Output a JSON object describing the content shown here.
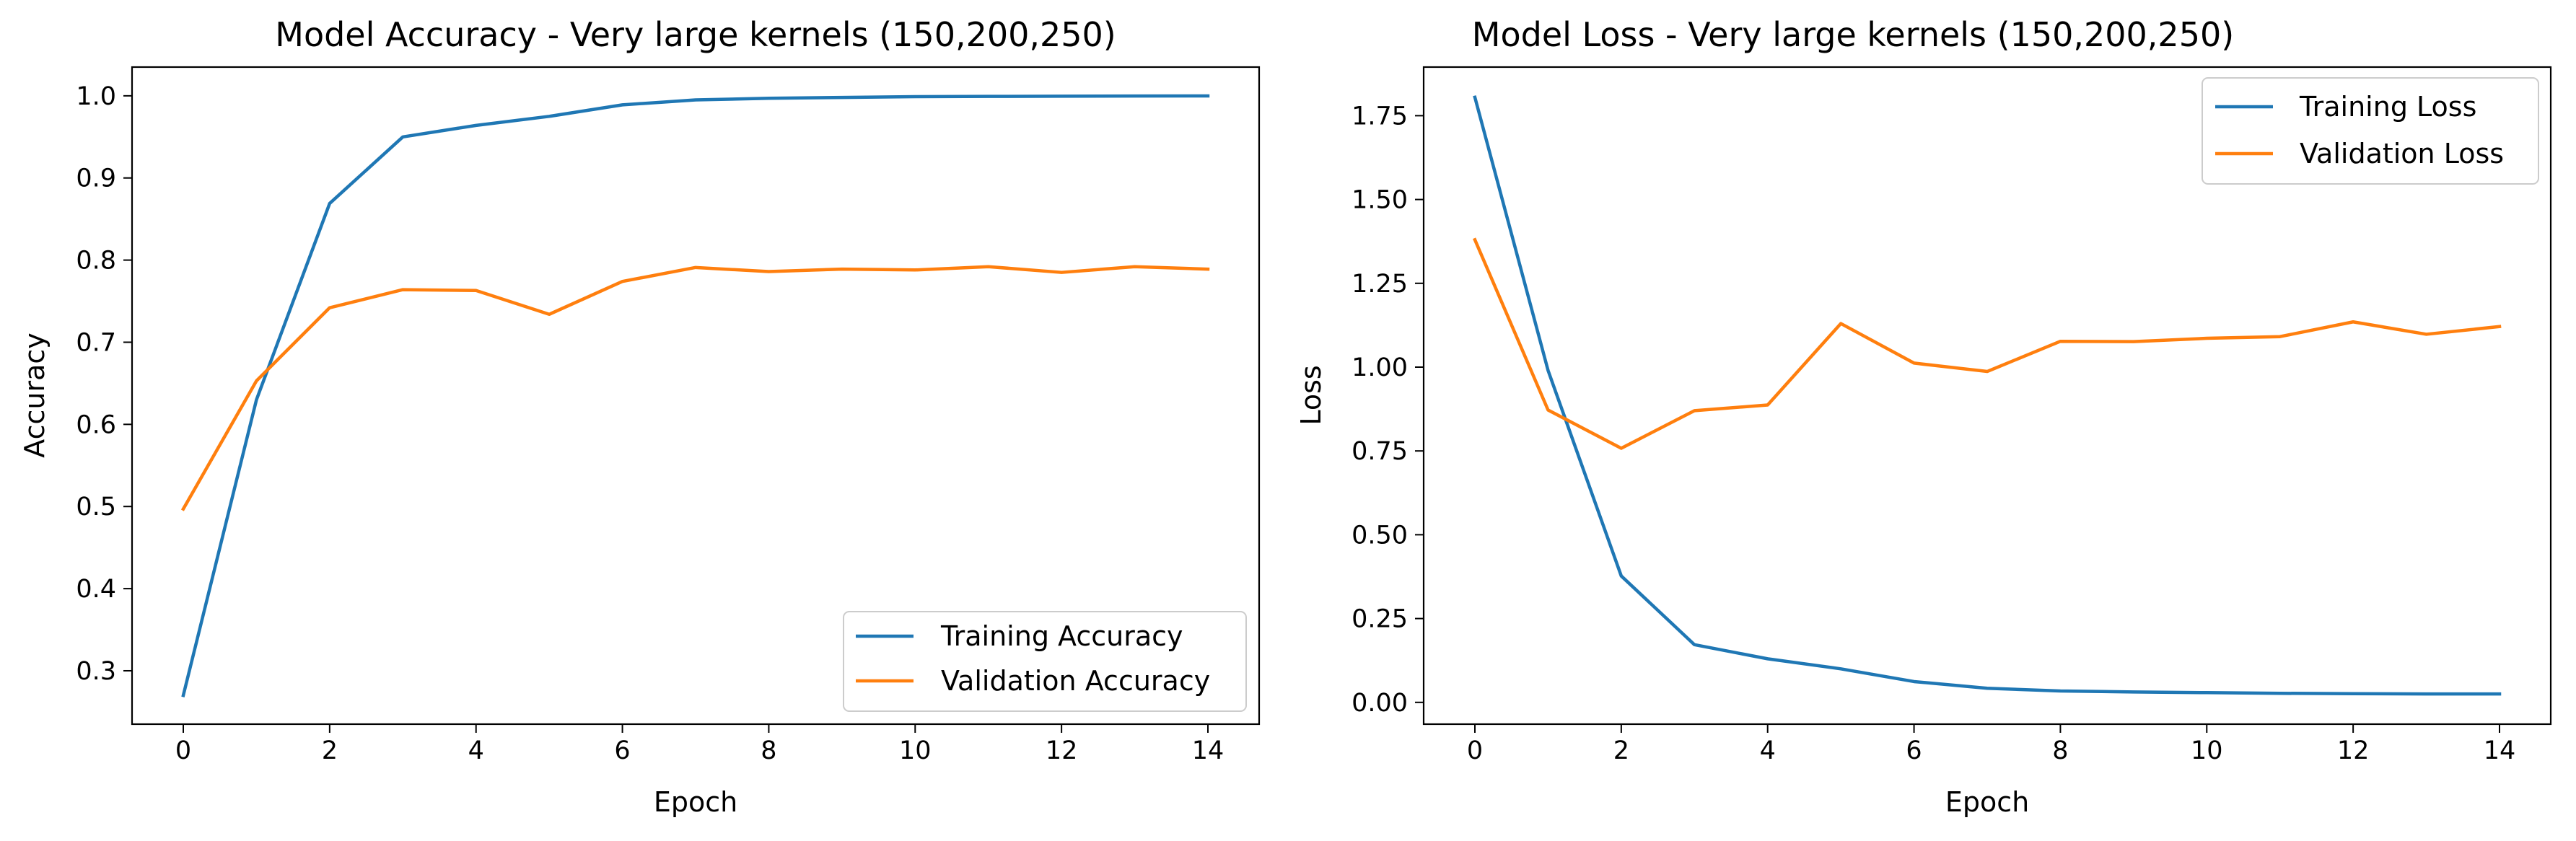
{
  "figure": {
    "background": "#ffffff"
  },
  "chart_data": [
    {
      "type": "line",
      "title": "Model Accuracy - Very large kernels (150,200,250)",
      "xlabel": "Epoch",
      "ylabel": "Accuracy",
      "x": [
        0,
        1,
        2,
        3,
        4,
        5,
        6,
        7,
        8,
        9,
        10,
        11,
        12,
        13,
        14
      ],
      "xlim": [
        -0.7,
        14.7
      ],
      "ylim": [
        0.235,
        1.035
      ],
      "xticks": [
        0,
        2,
        4,
        6,
        8,
        10,
        12,
        14
      ],
      "yticks": [
        0.3,
        0.4,
        0.5,
        0.6,
        0.7,
        0.8,
        0.9,
        1.0
      ],
      "ytick_labels": [
        "0.3",
        "0.4",
        "0.5",
        "0.6",
        "0.7",
        "0.8",
        "0.9",
        "1.0"
      ],
      "grid": false,
      "legend_position": "lower-right",
      "series": [
        {
          "name": "Training Accuracy",
          "color": "#1f77b4",
          "values": [
            0.27,
            0.63,
            0.869,
            0.95,
            0.964,
            0.975,
            0.989,
            0.995,
            0.997,
            0.998,
            0.999,
            0.9993,
            0.9995,
            0.9998,
            0.9999
          ]
        },
        {
          "name": "Validation Accuracy",
          "color": "#ff7f0e",
          "values": [
            0.497,
            0.653,
            0.742,
            0.764,
            0.763,
            0.734,
            0.774,
            0.791,
            0.786,
            0.789,
            0.788,
            0.792,
            0.785,
            0.792,
            0.789
          ]
        }
      ]
    },
    {
      "type": "line",
      "title": "Model Loss - Very large kernels (150,200,250)",
      "xlabel": "Epoch",
      "ylabel": "Loss",
      "x": [
        0,
        1,
        2,
        3,
        4,
        5,
        6,
        7,
        8,
        9,
        10,
        11,
        12,
        13,
        14
      ],
      "xlim": [
        -0.7,
        14.7
      ],
      "ylim": [
        -0.065,
        1.895
      ],
      "xticks": [
        0,
        2,
        4,
        6,
        8,
        10,
        12,
        14
      ],
      "yticks": [
        0.0,
        0.25,
        0.5,
        0.75,
        1.0,
        1.25,
        1.5,
        1.75
      ],
      "ytick_labels": [
        "0.00",
        "0.25",
        "0.50",
        "0.75",
        "1.00",
        "1.25",
        "1.50",
        "1.75"
      ],
      "grid": false,
      "legend_position": "upper-right",
      "series": [
        {
          "name": "Training Loss",
          "color": "#1f77b4",
          "values": [
            1.805,
            0.99,
            0.377,
            0.172,
            0.13,
            0.1,
            0.062,
            0.042,
            0.034,
            0.031,
            0.029,
            0.027,
            0.026,
            0.025,
            0.025
          ]
        },
        {
          "name": "Validation Loss",
          "color": "#ff7f0e",
          "values": [
            1.38,
            0.872,
            0.758,
            0.87,
            0.887,
            1.13,
            1.012,
            0.987,
            1.077,
            1.076,
            1.086,
            1.091,
            1.135,
            1.098,
            1.121
          ]
        }
      ]
    }
  ]
}
